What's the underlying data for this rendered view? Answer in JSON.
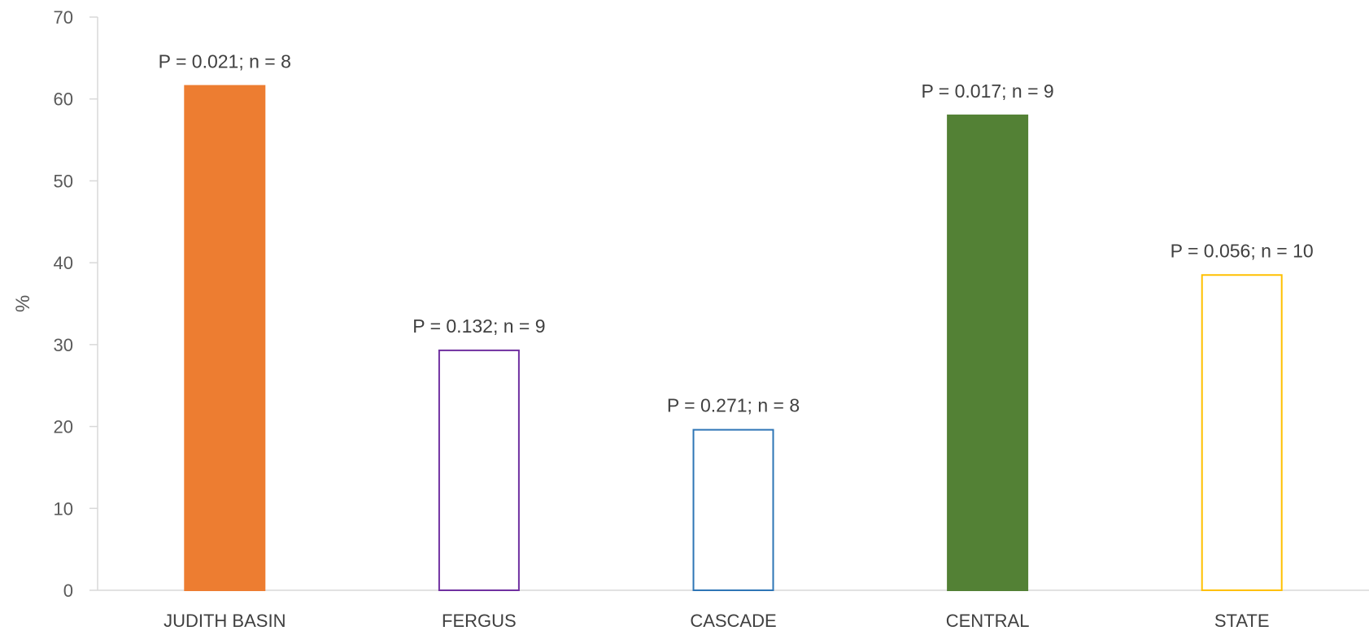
{
  "chart_data": {
    "type": "bar",
    "title": "",
    "xlabel": "",
    "ylabel": "%",
    "ylim": [
      0,
      70
    ],
    "yticks": [
      0,
      10,
      20,
      30,
      40,
      50,
      60,
      70
    ],
    "grid": false,
    "legend": "none",
    "categories": [
      "JUDITH BASIN",
      "FERGUS",
      "CASCADE",
      "CENTRAL",
      "STATE"
    ],
    "values": [
      61.6,
      29.3,
      19.6,
      58.0,
      38.5
    ],
    "data_labels": [
      "P = 0.021; n = 8",
      "P = 0.132; n = 9",
      "P = 0.271; n = 8",
      "P = 0.017; n = 9",
      "P = 0.056; n = 10"
    ],
    "bar_styles": [
      {
        "fill": "#ED7D31",
        "stroke": "#ED7D31"
      },
      {
        "fill": "#FFFFFF",
        "stroke": "#7030A0"
      },
      {
        "fill": "#FFFFFF",
        "stroke": "#2E75B6"
      },
      {
        "fill": "#538135",
        "stroke": "#538135"
      },
      {
        "fill": "#FFFFFF",
        "stroke": "#FFC000"
      }
    ],
    "axis_color": "#D9D9D9"
  }
}
